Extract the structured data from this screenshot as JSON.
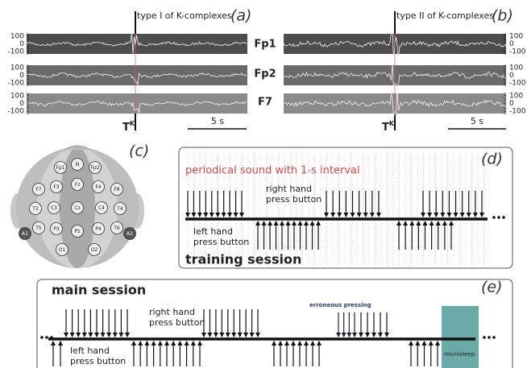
{
  "panel_a": {
    "label": "(a)",
    "title": "type I of K-complexes",
    "marker": "T",
    "marker_sup": "K",
    "scale": "5 s"
  },
  "panel_b": {
    "label": "(b)",
    "title": "type II of K-complexes",
    "marker": "T",
    "marker_sup": "K",
    "scale": "5 s"
  },
  "eeg": {
    "yticks": [
      100,
      0,
      -100
    ],
    "channels": [
      "Fp1",
      "Fp2",
      "F7"
    ]
  },
  "panel_c": {
    "label": "(c)",
    "electrodes": [
      "Fp1",
      "N",
      "Fp2",
      "F7",
      "F3",
      "Fz",
      "F4",
      "F8",
      "T3",
      "C3",
      "Cz",
      "C4",
      "T4",
      "T5",
      "P3",
      "Pz",
      "P4",
      "T6",
      "A1",
      "A2",
      "O1",
      "O2"
    ]
  },
  "panel_d": {
    "label": "(d)",
    "sound_note": "periodical sound with 1-s interval",
    "right_hand": [
      "right hand",
      "press button"
    ],
    "left_hand": [
      "left hand",
      "press button"
    ],
    "title": "training session"
  },
  "panel_e": {
    "label": "(e)",
    "title": "main session",
    "right_hand": [
      "right hand",
      "press button"
    ],
    "left_hand": [
      "left hand",
      "press button"
    ],
    "error_note": "erroneous pressing",
    "microsleep": "microsleep"
  }
}
